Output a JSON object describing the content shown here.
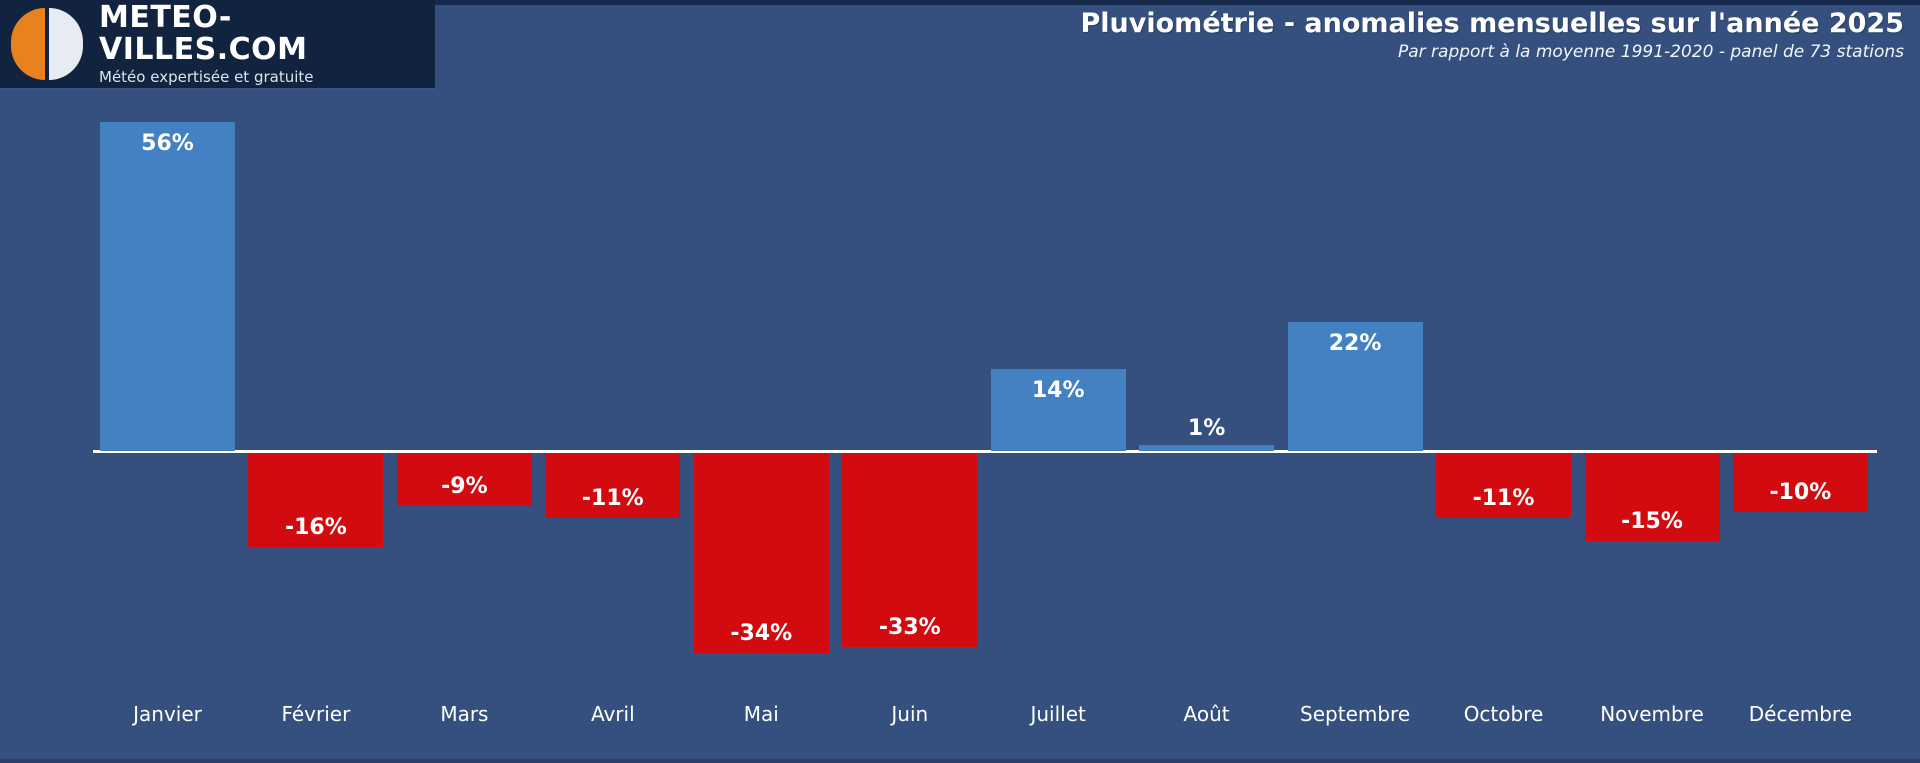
{
  "logo": {
    "title": "METEO-VILLES.COM",
    "subtitle": "Météo expertisée et gratuite"
  },
  "header": {
    "title": "Pluviométrie - anomalies mensuelles sur l'année 2025",
    "subtitle": "Par rapport à la moyenne 1991-2020 - panel de 73 stations"
  },
  "chart_data": {
    "type": "bar",
    "title": "Pluviométrie - anomalies mensuelles sur l'année 2025",
    "subtitle": "Par rapport à la moyenne 1991-2020 - panel de 73 stations",
    "unit": "%",
    "categories": [
      "Janvier",
      "Février",
      "Mars",
      "Avril",
      "Mai",
      "Juin",
      "Juillet",
      "Août",
      "Septembre",
      "Octobre",
      "Novembre",
      "Décembre"
    ],
    "values": [
      56,
      -16,
      -9,
      -11,
      -34,
      -33,
      14,
      1,
      22,
      -11,
      -15,
      -10
    ],
    "value_labels": [
      "56%",
      "-16%",
      "-9%",
      "-11%",
      "-34%",
      "-33%",
      "14%",
      "1%",
      "22%",
      "-11%",
      "-15%",
      "-10%"
    ],
    "ylim": [
      -40,
      60
    ],
    "grid": false,
    "legend": "none",
    "colors": {
      "positive_bar": "#4381c3",
      "negative_bar": "#d20b10",
      "baseline": "#ffffff",
      "background": "#35507f",
      "label_text": "#ffffff"
    }
  },
  "brand_colors": {
    "logo_background": "#12233f",
    "logo_orange": "#e8821e",
    "logo_white": "#e7ecf3"
  }
}
